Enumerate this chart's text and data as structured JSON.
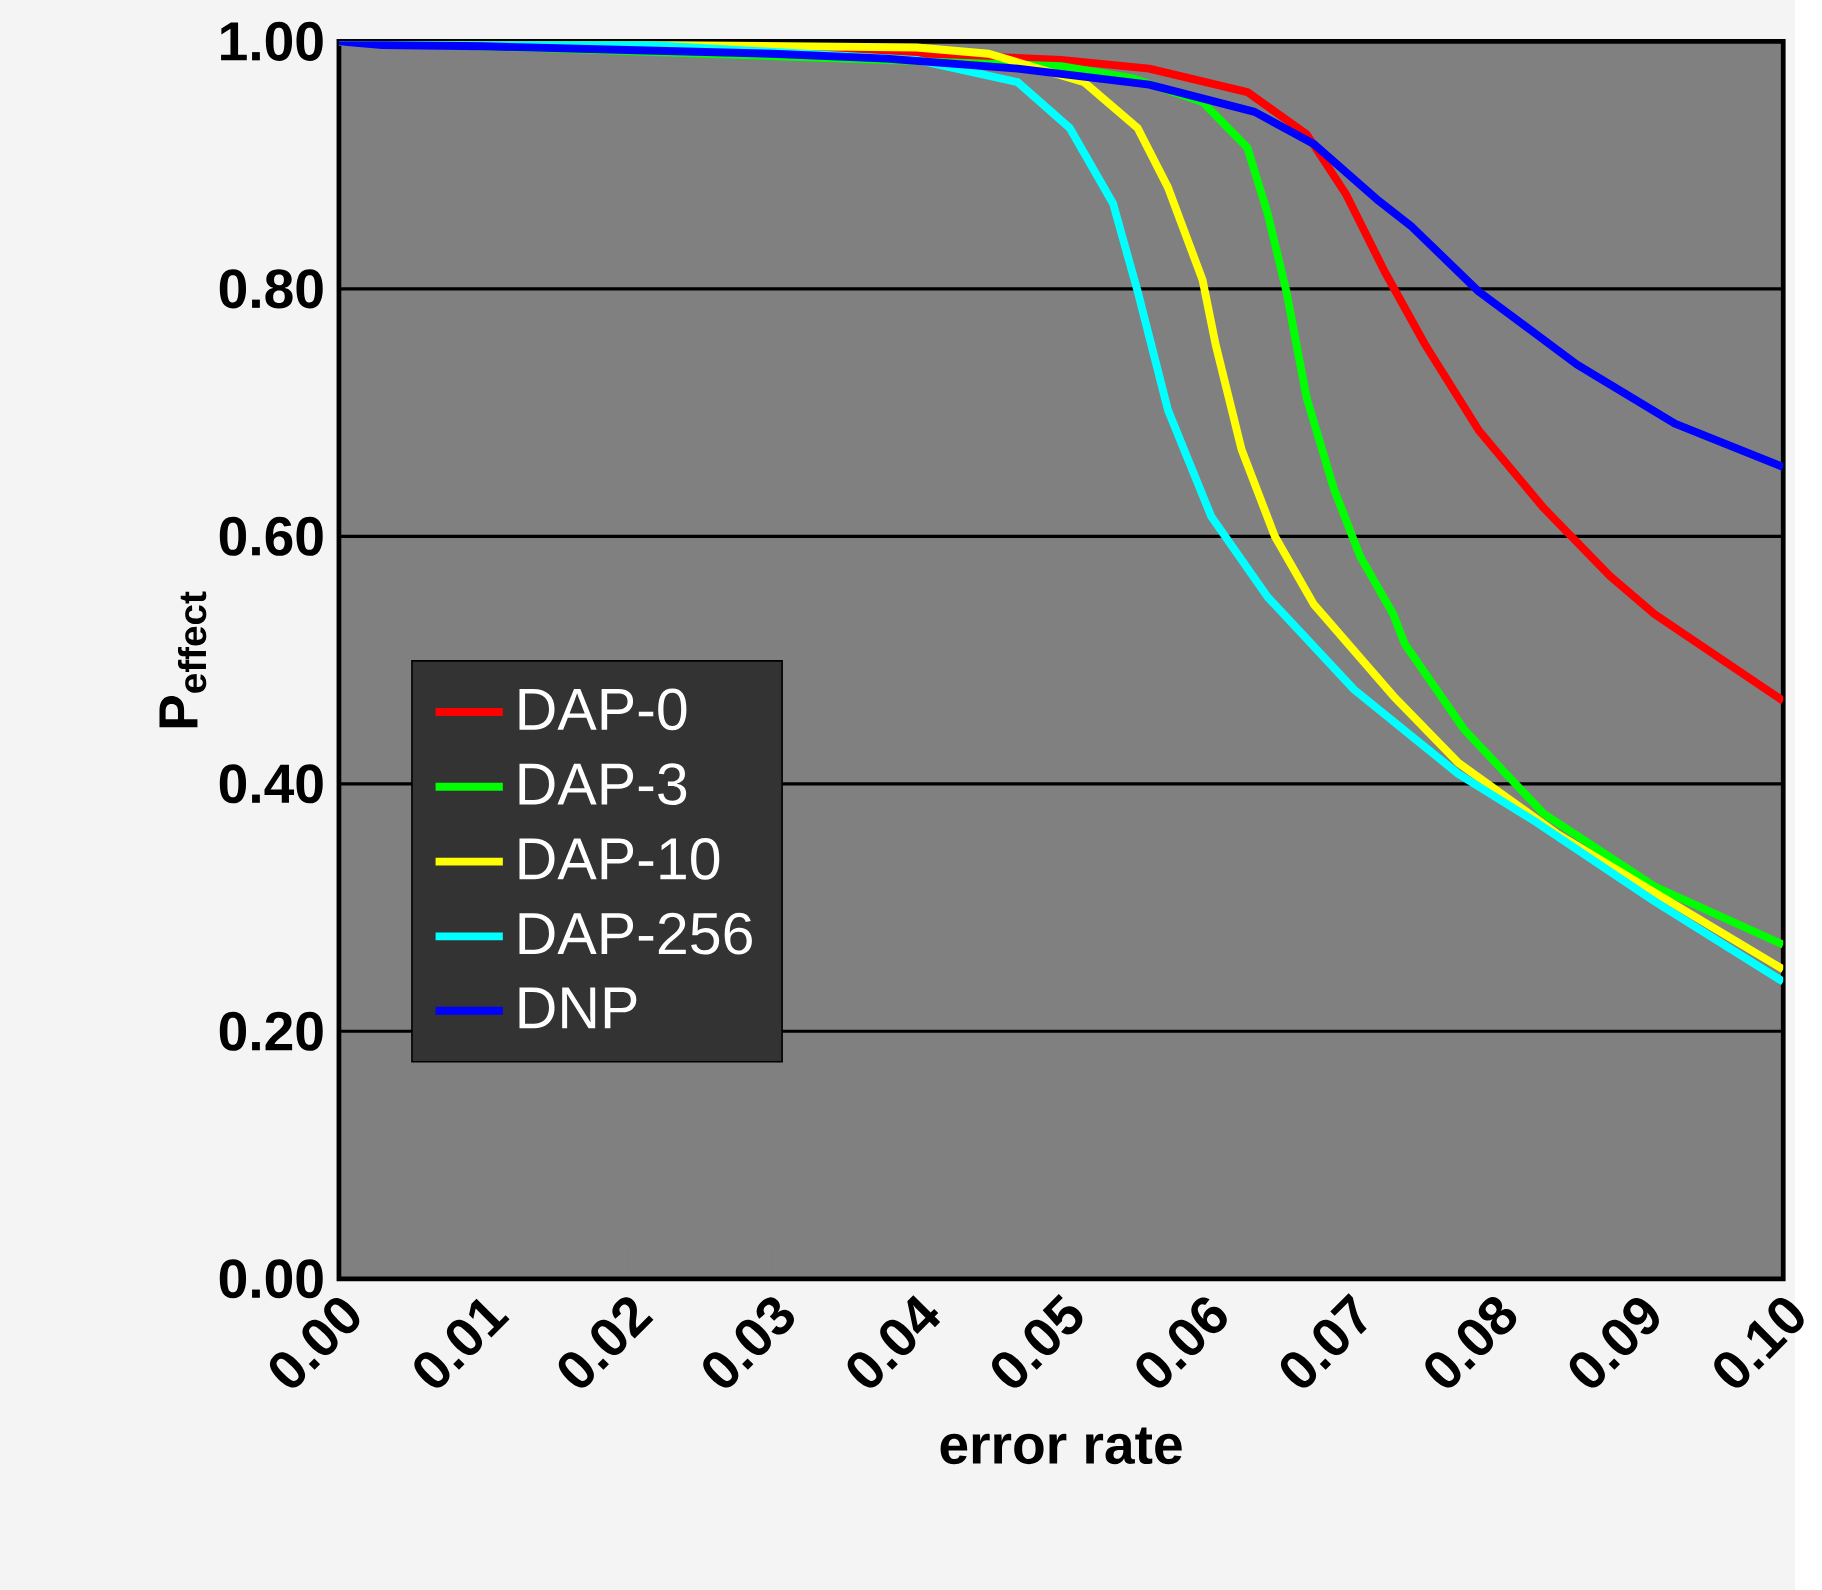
{
  "chart_data": {
    "type": "line",
    "xlabel": "error rate",
    "ylabel": "P$_{effect}$",
    "xlim": [
      0,
      0.1
    ],
    "ylim": [
      0,
      1
    ],
    "xticks": [
      {
        "value": 0,
        "label": "0.00"
      },
      {
        "value": 0.01,
        "label": "0.01"
      },
      {
        "value": 0.02,
        "label": "0.02"
      },
      {
        "value": 0.03,
        "label": "0.03"
      },
      {
        "value": 0.04,
        "label": "0.04"
      },
      {
        "value": 0.05,
        "label": "0.05"
      },
      {
        "value": 0.06,
        "label": "0.06"
      },
      {
        "value": 0.07,
        "label": "0.07"
      },
      {
        "value": 0.08,
        "label": "0.08"
      },
      {
        "value": 0.09,
        "label": "0.09"
      },
      {
        "value": 0.1,
        "label": "0.10"
      }
    ],
    "yticks": [
      {
        "value": 0,
        "label": "0.00"
      },
      {
        "value": 0.2,
        "label": "0.20"
      },
      {
        "value": 0.4,
        "label": "0.40"
      },
      {
        "value": 0.6,
        "label": "0.60"
      },
      {
        "value": 0.8,
        "label": "0.80"
      },
      {
        "value": 1,
        "label": "1.00"
      }
    ],
    "grid": "y",
    "legend": "left",
    "marker": "none",
    "line_style": "solid",
    "series": [
      {
        "name": "DAP-0",
        "color": "#ff0000",
        "x": [
          0,
          0.04,
          0.05,
          0.0561,
          0.0629,
          0.067,
          0.0697,
          0.0724,
          0.0752,
          0.0789,
          0.0834,
          0.088,
          0.0911,
          0.1
        ],
        "values": [
          1,
          0.99,
          0.985,
          0.978,
          0.959,
          0.925,
          0.877,
          0.814,
          0.755,
          0.686,
          0.623,
          0.568,
          0.537,
          0.467
        ]
      },
      {
        "name": "DAP-3",
        "color": "#00ff00",
        "x": [
          0,
          0.05,
          0.055,
          0.0598,
          0.0629,
          0.0643,
          0.0656,
          0.067,
          0.0689,
          0.0707,
          0.073,
          0.0738,
          0.0779,
          0.0834,
          0.0911,
          0.1
        ],
        "values": [
          1,
          0.98,
          0.97,
          0.951,
          0.914,
          0.861,
          0.798,
          0.712,
          0.638,
          0.584,
          0.537,
          0.513,
          0.444,
          0.376,
          0.317,
          0.27
        ]
      },
      {
        "name": "DAP-10",
        "color": "#ffff00",
        "x": [
          0,
          0.04,
          0.045,
          0.0516,
          0.0553,
          0.0574,
          0.0598,
          0.0607,
          0.0625,
          0.0648,
          0.0675,
          0.073,
          0.0775,
          0.0843,
          0.0911,
          0.1
        ],
        "values": [
          1,
          0.995,
          0.99,
          0.967,
          0.93,
          0.882,
          0.807,
          0.755,
          0.67,
          0.6,
          0.545,
          0.471,
          0.417,
          0.36,
          0.312,
          0.25
        ]
      },
      {
        "name": "DAP-256",
        "color": "#00ffff",
        "x": [
          0,
          0.02,
          0.04,
          0.047,
          0.0506,
          0.0536,
          0.0553,
          0.0574,
          0.0604,
          0.0643,
          0.0703,
          0.0775,
          0.0829,
          0.0911,
          0.1
        ],
        "values": [
          1,
          0.998,
          0.985,
          0.967,
          0.93,
          0.869,
          0.798,
          0.702,
          0.616,
          0.551,
          0.476,
          0.408,
          0.369,
          0.305,
          0.24
        ]
      },
      {
        "name": "DNP",
        "color": "#0000ff",
        "x": [
          0,
          0.003,
          0.01,
          0.02,
          0.03,
          0.0379,
          0.047,
          0.0561,
          0.0634,
          0.0675,
          0.072,
          0.0743,
          0.0789,
          0.0857,
          0.0925,
          0.1
        ],
        "values": [
          1,
          0.997,
          0.996,
          0.993,
          0.99,
          0.986,
          0.978,
          0.965,
          0.943,
          0.917,
          0.871,
          0.85,
          0.798,
          0.739,
          0.691,
          0.656
        ]
      }
    ]
  }
}
